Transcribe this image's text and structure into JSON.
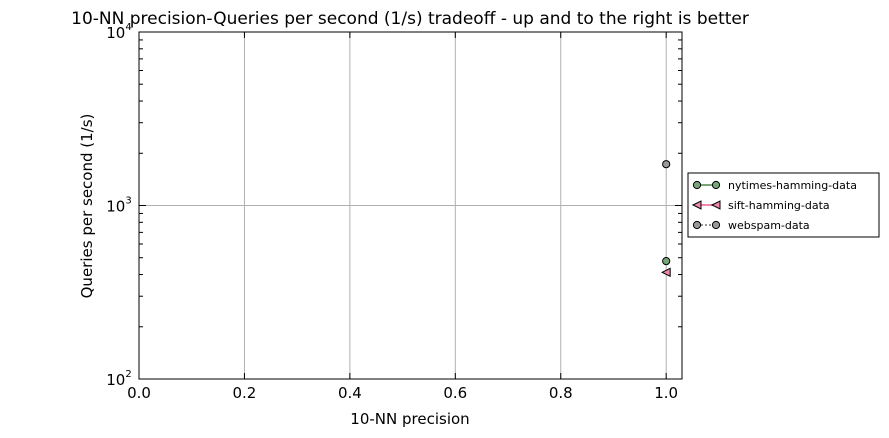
{
  "chart_data": {
    "type": "scatter",
    "title": "10-NN precision-Queries per second (1/s) tradeoff - up and to the right is better",
    "xlabel": "10-NN precision",
    "ylabel": "Queries per second (1/s)",
    "xlim": [
      0.0,
      1.03
    ],
    "ylim": [
      100,
      10000
    ],
    "yscale": "log",
    "grid": true,
    "legend_position": "right-outside",
    "x_ticks": [
      {
        "value": 0.0,
        "label": "0.0"
      },
      {
        "value": 0.2,
        "label": "0.2"
      },
      {
        "value": 0.4,
        "label": "0.4"
      },
      {
        "value": 0.6,
        "label": "0.6"
      },
      {
        "value": 0.8,
        "label": "0.8"
      },
      {
        "value": 1.0,
        "label": "1.0"
      }
    ],
    "y_ticks": [
      {
        "value": 100,
        "base": "10",
        "exp": "2"
      },
      {
        "value": 1000,
        "base": "10",
        "exp": "3"
      },
      {
        "value": 10000,
        "base": "10",
        "exp": "4"
      }
    ],
    "series": [
      {
        "name": "nytimes-hamming-data",
        "marker": "circle",
        "color": "#77a777",
        "line_color": "#77a777",
        "line_style": "solid",
        "points": [
          {
            "x": 1.0,
            "y": 478
          }
        ]
      },
      {
        "name": "sift-hamming-data",
        "marker": "triangle-left",
        "color": "#ee88aa",
        "line_color": "#ee88aa",
        "line_style": "solid",
        "points": [
          {
            "x": 1.0,
            "y": 412
          }
        ]
      },
      {
        "name": "webspam-data",
        "marker": "circle",
        "color": "#999999",
        "line_color": "#999999",
        "line_style": "dotted",
        "points": [
          {
            "x": 1.0,
            "y": 1730
          }
        ]
      }
    ]
  }
}
